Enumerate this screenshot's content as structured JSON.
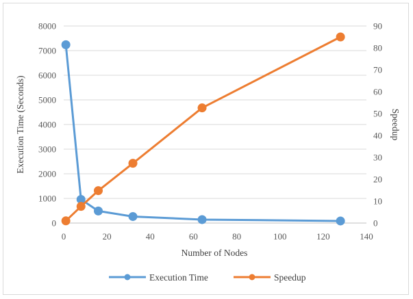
{
  "chart_data": {
    "type": "line",
    "title": "",
    "xlabel": "Number of Nodes",
    "ylabel": "Execution Time (Seconds)",
    "y2label": "Speedup",
    "xlim": [
      0,
      140
    ],
    "ylim": [
      0,
      8000
    ],
    "y2lim": [
      0,
      90
    ],
    "xticks": [
      0,
      20,
      40,
      60,
      80,
      100,
      120,
      140
    ],
    "yticks": [
      0,
      1000,
      2000,
      3000,
      4000,
      5000,
      6000,
      7000,
      8000
    ],
    "y2ticks": [
      0,
      10,
      20,
      30,
      40,
      50,
      60,
      70,
      80,
      90
    ],
    "grid": true,
    "legend_position": "bottom",
    "series": [
      {
        "name": "Execution Time",
        "axis": "left",
        "color": "#5b9bd5",
        "x": [
          1,
          8,
          16,
          32,
          64,
          128
        ],
        "y": [
          7240,
          960,
          490,
          265,
          140,
          85
        ]
      },
      {
        "name": "Speedup",
        "axis": "right",
        "color": "#ed7d31",
        "x": [
          1,
          8,
          16,
          32,
          64,
          128
        ],
        "y": [
          1,
          7.6,
          14.8,
          27.3,
          52.6,
          85
        ]
      }
    ]
  }
}
